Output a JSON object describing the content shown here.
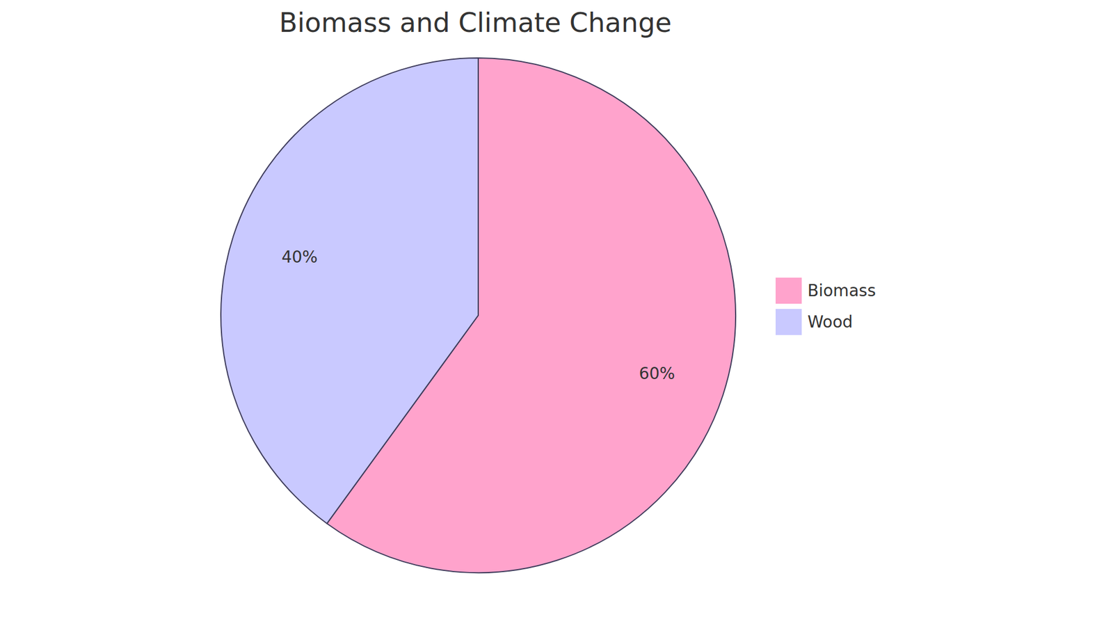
{
  "chart_data": {
    "type": "pie",
    "title": "Biomass and Climate Change",
    "categories": [
      "Biomass",
      "Wood"
    ],
    "values": [
      60,
      40
    ],
    "colors": [
      "#ffa3cc",
      "#c9c9ff"
    ],
    "data_labels": true,
    "value_labels": [
      "60%",
      "40%"
    ],
    "legend": "right"
  }
}
